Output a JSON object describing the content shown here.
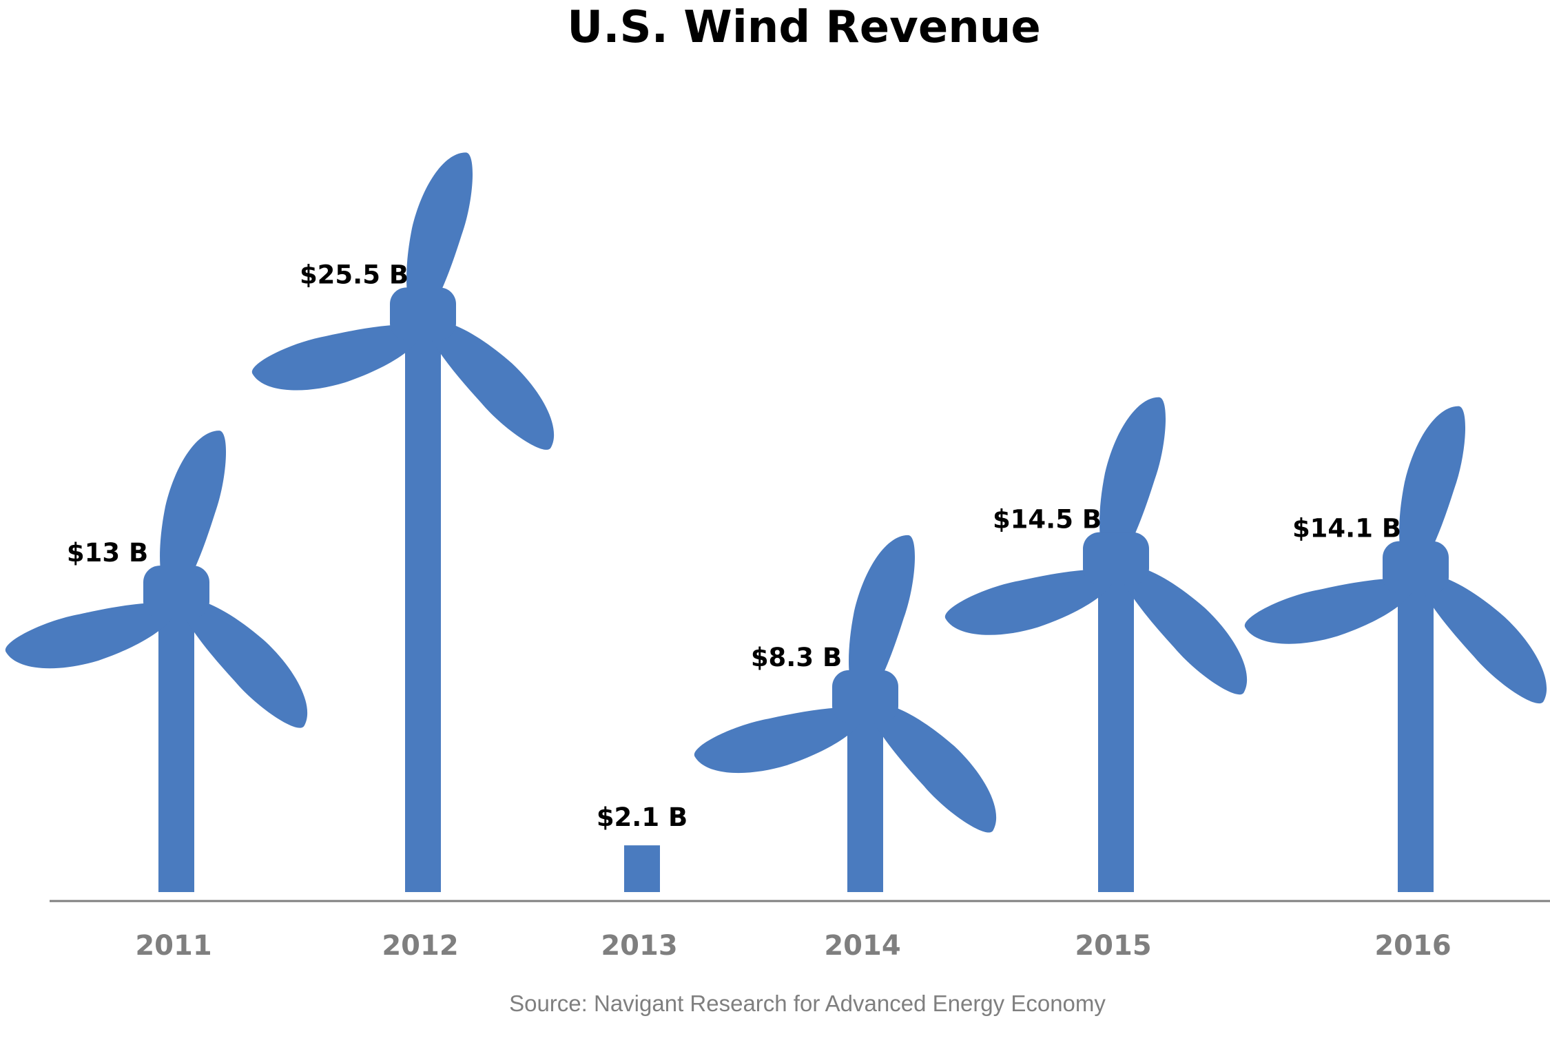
{
  "chart_data": {
    "type": "bar",
    "title": "U.S. Wind Revenue",
    "categories": [
      "2011",
      "2012",
      "2013",
      "2014",
      "2015",
      "2016"
    ],
    "values": [
      13,
      25.5,
      2.1,
      8.3,
      14.5,
      14.1
    ],
    "value_labels": [
      "$13 B",
      "$25.5 B",
      "$2.1 B",
      "$8.3 B",
      "$14.5 B",
      "$14.1 B"
    ],
    "source": "Source: Navigant Research for Advanced Energy Economy",
    "mark_shape": "wind-turbine",
    "grid": false,
    "legend": "none"
  },
  "colors": {
    "turbine": "#4a7bbf",
    "axis": "#7f7f7f",
    "tick_text": "#7f7f7f",
    "title_text": "#000000"
  }
}
